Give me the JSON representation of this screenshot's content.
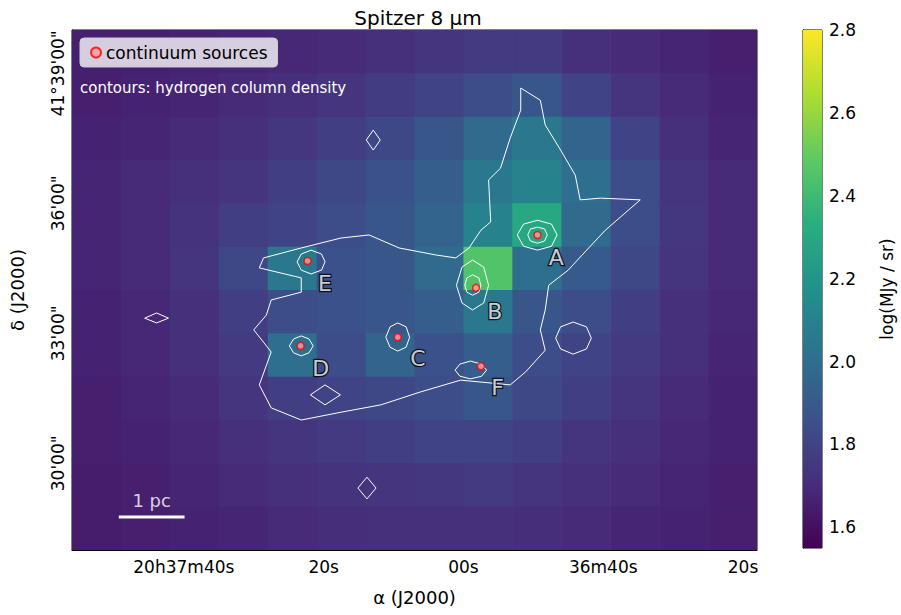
{
  "chart_data": {
    "type": "heatmap",
    "title": "Spitzer 8 μm",
    "xlabel": "α (J2000)",
    "ylabel": "δ (J2000)",
    "xlim": [
      2276,
      2178
    ],
    "xticks": [
      {
        "value": 2260,
        "label": "20h37m40s"
      },
      {
        "value": 2240,
        "label": "20s"
      },
      {
        "value": 2220,
        "label": "00s"
      },
      {
        "value": 2200,
        "label": "36m40s"
      },
      {
        "value": 2180,
        "label": "20s"
      }
    ],
    "ylim": [
      28,
      40
    ],
    "yticks": [
      {
        "value": 30,
        "label": "30'00\""
      },
      {
        "value": 33,
        "label": "33'00\""
      },
      {
        "value": 36,
        "label": "36'00\""
      },
      {
        "value": 39,
        "label": "41°39'00\""
      }
    ],
    "grid": false,
    "legend": "upper left",
    "heatmap": {
      "x_edges": [
        2276,
        2269,
        2262,
        2255,
        2248,
        2241,
        2234,
        2227,
        2220,
        2213,
        2206,
        2199,
        2192,
        2185,
        2178
      ],
      "y_edges": [
        40,
        39,
        38,
        37,
        36,
        35,
        34,
        33,
        32,
        31,
        30,
        29,
        28
      ],
      "cells": [
        [
          1.66,
          1.66,
          1.67,
          1.68,
          1.69,
          1.7,
          1.72,
          1.74,
          1.76,
          1.76,
          1.72,
          1.7,
          1.68,
          1.66
        ],
        [
          1.66,
          1.67,
          1.68,
          1.7,
          1.72,
          1.74,
          1.77,
          1.8,
          1.84,
          1.88,
          1.8,
          1.74,
          1.7,
          1.67
        ],
        [
          1.67,
          1.68,
          1.7,
          1.72,
          1.75,
          1.78,
          1.82,
          1.88,
          1.98,
          2.05,
          1.95,
          1.8,
          1.72,
          1.68
        ],
        [
          1.68,
          1.7,
          1.72,
          1.74,
          1.78,
          1.82,
          1.86,
          1.92,
          2.05,
          2.1,
          2.0,
          1.84,
          1.74,
          1.7
        ],
        [
          1.68,
          1.7,
          1.73,
          1.78,
          1.8,
          1.84,
          1.88,
          1.95,
          2.1,
          2.3,
          1.98,
          1.84,
          1.75,
          1.7
        ],
        [
          1.68,
          1.7,
          1.74,
          1.82,
          2.05,
          1.86,
          1.88,
          1.98,
          2.45,
          2.0,
          1.9,
          1.82,
          1.74,
          1.7
        ],
        [
          1.67,
          1.69,
          1.72,
          1.78,
          1.84,
          1.86,
          1.88,
          1.92,
          2.05,
          1.88,
          1.84,
          1.78,
          1.72,
          1.69
        ],
        [
          1.67,
          1.69,
          1.72,
          1.76,
          2.0,
          1.84,
          1.95,
          1.86,
          1.92,
          1.84,
          1.8,
          1.76,
          1.72,
          1.68
        ],
        [
          1.66,
          1.68,
          1.7,
          1.74,
          1.78,
          1.8,
          1.82,
          1.84,
          1.88,
          1.82,
          1.78,
          1.74,
          1.7,
          1.67
        ],
        [
          1.66,
          1.67,
          1.69,
          1.72,
          1.74,
          1.76,
          1.78,
          1.8,
          1.8,
          1.78,
          1.74,
          1.72,
          1.69,
          1.67
        ],
        [
          1.65,
          1.66,
          1.68,
          1.7,
          1.72,
          1.73,
          1.74,
          1.75,
          1.76,
          1.74,
          1.72,
          1.7,
          1.68,
          1.66
        ],
        [
          1.65,
          1.66,
          1.67,
          1.68,
          1.7,
          1.71,
          1.72,
          1.72,
          1.72,
          1.71,
          1.7,
          1.68,
          1.67,
          1.66
        ]
      ]
    },
    "colorbar": {
      "label": "log(MJy / sr)",
      "range": [
        1.55,
        2.8
      ],
      "ticks": [
        1.6,
        1.8,
        {
          "value": 2,
          "label": "2.0"
        },
        2.2,
        2.4,
        2.6,
        2.8
      ]
    },
    "series": [
      {
        "name": "continuum sources",
        "type": "scatter",
        "color": "red",
        "marker": "circle",
        "x": [
          2209.4,
          2218.2,
          2229.4,
          2243.3,
          2242.3,
          2217.5
        ],
        "y": [
          35.27,
          34.05,
          32.91,
          32.71,
          34.67,
          32.24
        ]
      }
    ],
    "contours": {
      "label": "contours: hydrogen column density",
      "color": "white",
      "lines": [
        [
          [
            2249.2,
            34.51
          ],
          [
            2248.6,
            34.74
          ],
          [
            2243.2,
            34.97
          ],
          [
            2237.5,
            35.2
          ],
          [
            2233.5,
            35.27
          ],
          [
            2229.2,
            34.97
          ],
          [
            2224.0,
            34.81
          ],
          [
            2221.1,
            34.74
          ],
          [
            2219.2,
            34.97
          ],
          [
            2217.5,
            35.38
          ],
          [
            2216.1,
            35.57
          ],
          [
            2216.4,
            36.54
          ],
          [
            2214.7,
            36.81
          ],
          [
            2213.3,
            37.51
          ],
          [
            2211.8,
            38.15
          ],
          [
            2211.8,
            38.66
          ],
          [
            2209.0,
            38.38
          ],
          [
            2208.3,
            37.81
          ],
          [
            2206.1,
            37.23
          ],
          [
            2204.0,
            36.65
          ],
          [
            2203.3,
            36.08
          ],
          [
            2200.4,
            36.12
          ],
          [
            2194.7,
            36.08
          ],
          [
            2199.7,
            35.38
          ],
          [
            2202.6,
            34.88
          ],
          [
            2205.0,
            34.46
          ],
          [
            2207.8,
            34.11
          ],
          [
            2208.3,
            33.54
          ],
          [
            2209.0,
            33.08
          ],
          [
            2208.3,
            32.61
          ],
          [
            2211.1,
            32.11
          ],
          [
            2213.3,
            31.81
          ],
          [
            2220.4,
            31.92
          ],
          [
            2226.1,
            31.65
          ],
          [
            2231.8,
            31.35
          ],
          [
            2237.5,
            31.18
          ],
          [
            2243.2,
            31.0
          ],
          [
            2247.5,
            31.28
          ],
          [
            2249.2,
            31.81
          ],
          [
            2247.5,
            32.57
          ],
          [
            2250.0,
            33.08
          ],
          [
            2248.2,
            33.42
          ],
          [
            2247.5,
            33.77
          ],
          [
            2243.2,
            33.95
          ],
          [
            2243.2,
            34.28
          ]
        ],
        [
          [
            2206.6,
            35.27
          ],
          [
            2207.4,
            35.52
          ],
          [
            2209.4,
            35.61
          ],
          [
            2211.4,
            35.52
          ],
          [
            2212.3,
            35.27
          ],
          [
            2211.4,
            35.01
          ],
          [
            2209.4,
            34.92
          ],
          [
            2207.4,
            35.01
          ]
        ],
        [
          [
            2208.0,
            35.27
          ],
          [
            2208.4,
            35.41
          ],
          [
            2209.4,
            35.45
          ],
          [
            2210.4,
            35.41
          ],
          [
            2210.8,
            35.27
          ],
          [
            2210.4,
            35.13
          ],
          [
            2209.4,
            35.08
          ],
          [
            2208.4,
            35.13
          ]
        ],
        [
          [
            2216.4,
            34.11
          ],
          [
            2217.1,
            34.53
          ],
          [
            2218.7,
            34.69
          ],
          [
            2220.2,
            34.53
          ],
          [
            2221.0,
            34.11
          ],
          [
            2220.2,
            33.7
          ],
          [
            2218.7,
            33.54
          ],
          [
            2217.1,
            33.7
          ]
        ],
        [
          [
            2217.5,
            34.11
          ],
          [
            2217.8,
            34.28
          ],
          [
            2218.7,
            34.35
          ],
          [
            2219.5,
            34.28
          ],
          [
            2219.8,
            34.11
          ],
          [
            2219.5,
            33.95
          ],
          [
            2218.7,
            33.88
          ],
          [
            2217.8,
            33.95
          ]
        ],
        [
          [
            2227.7,
            32.91
          ],
          [
            2228.2,
            33.15
          ],
          [
            2229.4,
            33.24
          ],
          [
            2230.5,
            33.15
          ],
          [
            2231.1,
            32.91
          ],
          [
            2230.5,
            32.68
          ],
          [
            2229.4,
            32.59
          ],
          [
            2228.2,
            32.68
          ]
        ],
        [
          [
            2241.5,
            32.71
          ],
          [
            2242.1,
            32.87
          ],
          [
            2243.2,
            32.94
          ],
          [
            2244.3,
            32.87
          ],
          [
            2244.9,
            32.71
          ],
          [
            2244.3,
            32.55
          ],
          [
            2243.2,
            32.48
          ],
          [
            2242.1,
            32.55
          ]
        ],
        [
          [
            2239.8,
            34.65
          ],
          [
            2240.3,
            34.83
          ],
          [
            2241.8,
            34.92
          ],
          [
            2243.2,
            34.83
          ],
          [
            2243.8,
            34.65
          ],
          [
            2243.2,
            34.46
          ],
          [
            2241.8,
            34.37
          ],
          [
            2240.3,
            34.46
          ]
        ],
        [
          [
            2216.7,
            32.15
          ],
          [
            2217.4,
            32.29
          ],
          [
            2219.0,
            32.36
          ],
          [
            2220.5,
            32.29
          ],
          [
            2221.2,
            32.15
          ],
          [
            2220.5,
            32.01
          ],
          [
            2219.0,
            31.95
          ],
          [
            2217.4,
            32.01
          ]
        ],
        [
          [
            2201.7,
            32.89
          ],
          [
            2202.4,
            33.15
          ],
          [
            2204.3,
            33.26
          ],
          [
            2206.1,
            33.15
          ],
          [
            2206.8,
            32.89
          ],
          [
            2206.1,
            32.64
          ],
          [
            2204.3,
            32.52
          ],
          [
            2202.4,
            32.64
          ]
        ],
        [
          [
            2262.2,
            33.35
          ],
          [
            2263.9,
            33.47
          ],
          [
            2265.6,
            33.35
          ],
          [
            2263.9,
            33.24
          ]
        ],
        [
          [
            2231.9,
            37.46
          ],
          [
            2232.9,
            37.69
          ],
          [
            2233.9,
            37.46
          ],
          [
            2232.9,
            37.23
          ]
        ],
        [
          [
            2237.6,
            31.58
          ],
          [
            2239.8,
            31.81
          ],
          [
            2241.9,
            31.58
          ],
          [
            2239.8,
            31.35
          ]
        ],
        [
          [
            2232.5,
            29.43
          ],
          [
            2233.8,
            29.68
          ],
          [
            2235.1,
            29.43
          ],
          [
            2233.8,
            29.18
          ]
        ]
      ]
    },
    "annotations": [
      {
        "text": "A",
        "x": 2206.7,
        "y": 34.76
      },
      {
        "text": "B",
        "x": 2215.5,
        "y": 33.51
      },
      {
        "text": "C",
        "x": 2226.5,
        "y": 32.43
      },
      {
        "text": "D",
        "x": 2240.4,
        "y": 32.18
      },
      {
        "text": "E",
        "x": 2239.8,
        "y": 34.14
      },
      {
        "text": "F",
        "x": 2215.1,
        "y": 31.74
      }
    ],
    "scale_bar": {
      "label": "1 pc",
      "x": [
        2269.3,
        2259.9
      ],
      "y": 28.76
    }
  }
}
